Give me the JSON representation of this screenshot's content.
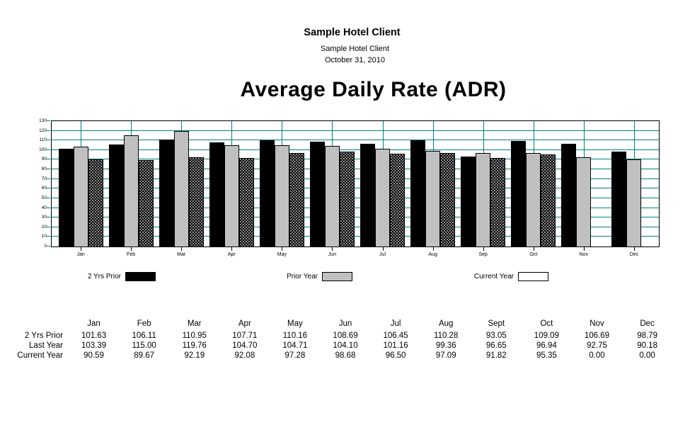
{
  "header": {
    "title": "Sample Hotel Client",
    "subtitle": "Sample Hotel Client",
    "date": "October 31, 2010"
  },
  "chart_data": {
    "type": "bar",
    "title": "Average Daily Rate (ADR)",
    "categories": [
      "Jan",
      "Feb",
      "Mar",
      "Apr",
      "May",
      "Jun",
      "Jul",
      "Aug",
      "Sep",
      "Oct",
      "Nov",
      "Dec"
    ],
    "series": [
      {
        "name": "2 Yrs Prior",
        "swatch": "solid-black",
        "values": [
          101.63,
          106.11,
          110.95,
          107.71,
          110.16,
          108.69,
          106.45,
          110.28,
          93.05,
          109.09,
          106.69,
          98.79
        ]
      },
      {
        "name": "Prior Year",
        "swatch": "solid-gray",
        "values": [
          103.39,
          115.0,
          119.76,
          104.7,
          104.71,
          104.1,
          101.16,
          99.36,
          96.65,
          96.94,
          92.75,
          90.18
        ]
      },
      {
        "name": "Current Year",
        "swatch": "dotted-black",
        "values": [
          90.59,
          89.67,
          92.19,
          92.08,
          97.28,
          98.68,
          96.5,
          97.09,
          91.82,
          95.35,
          0.0,
          0.0
        ]
      }
    ],
    "ylim": [
      0,
      130
    ],
    "ytick_interval": 10,
    "grid": true,
    "gridline_color": "#008080",
    "legend_position": "below-chart",
    "colors": {
      "solid_black": "#000000",
      "solid_gray": "#c0c0c0",
      "dot_pattern_base": "#000000"
    }
  },
  "table": {
    "columns": [
      "Jan",
      "Feb",
      "Mar",
      "Apr",
      "May",
      "Jun",
      "Jul",
      "Aug",
      "Sept",
      "Oct",
      "Nov",
      "Dec"
    ],
    "rows": [
      {
        "label": "2 Yrs Prior",
        "values": [
          "101.63",
          "106.11",
          "110.95",
          "107.71",
          "110.16",
          "108.69",
          "106.45",
          "110.28",
          "93.05",
          "109.09",
          "106.69",
          "98.79"
        ]
      },
      {
        "label": "Last Year",
        "values": [
          "103.39",
          "115.00",
          "119.76",
          "104.70",
          "104.71",
          "104.10",
          "101.16",
          "99.36",
          "96.65",
          "96.94",
          "92.75",
          "90.18"
        ]
      },
      {
        "label": "Current Year",
        "values": [
          "90.59",
          "89.67",
          "92.19",
          "92.08",
          "97.28",
          "98.68",
          "96.50",
          "97.09",
          "91.82",
          "95.35",
          "0.00",
          "0.00"
        ]
      }
    ]
  }
}
